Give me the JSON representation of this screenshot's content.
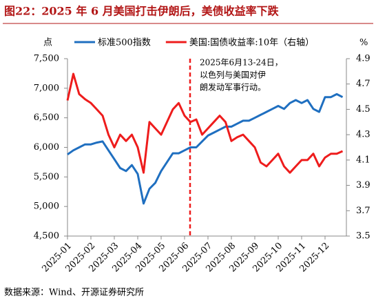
{
  "chart_data": {
    "type": "line",
    "title": "图22：2025 年 6 月美国打击伊朗后，美债收益率下跌",
    "y_label": "点",
    "y2_label": "%",
    "source": "数据来源：Wind、开源证券研究所",
    "annotation": [
      "2025年6月13-24日，",
      "以色列与美国对伊",
      "朗发动军事行动。"
    ],
    "categories": [
      "2025-01",
      null,
      null,
      null,
      "2025-02",
      null,
      null,
      null,
      "2025-03",
      null,
      null,
      null,
      "2025-04",
      null,
      null,
      null,
      "2025-05",
      null,
      null,
      null,
      "2025-06",
      null,
      null,
      null,
      "2025-07",
      null,
      null,
      null,
      "2025-08",
      null,
      null,
      null,
      "2025-09",
      null,
      null,
      null,
      "2025-10",
      null,
      null,
      null,
      "2025-11",
      null,
      null,
      null,
      "2025-12",
      null,
      null,
      null
    ],
    "series": [
      {
        "name": "标准500指数",
        "color": "#1f6fc0",
        "axis": "y",
        "values": [
          5880,
          5950,
          6000,
          6050,
          6050,
          6080,
          6100,
          5950,
          5800,
          5650,
          5600,
          5700,
          5550,
          5050,
          5300,
          5400,
          5600,
          5750,
          5900,
          5900,
          5950,
          6000,
          6000,
          6100,
          6200,
          6250,
          6300,
          6350,
          6350,
          6400,
          6450,
          6450,
          6500,
          6550,
          6600,
          6650,
          6700,
          6650,
          6750,
          6800,
          6750,
          6800,
          6650,
          6600,
          6850,
          6850,
          6900,
          6850
        ]
      },
      {
        "name": "美国:国债收益率:10年（右轴）",
        "color": "#ee1c1c",
        "axis": "y2",
        "values": [
          4.57,
          4.78,
          4.62,
          4.58,
          4.55,
          4.5,
          4.45,
          4.3,
          4.2,
          4.3,
          4.25,
          4.3,
          4.2,
          4.0,
          4.4,
          4.35,
          4.3,
          4.4,
          4.5,
          4.55,
          4.45,
          4.4,
          4.42,
          4.3,
          4.35,
          4.4,
          4.45,
          4.4,
          4.25,
          4.28,
          4.3,
          4.25,
          4.2,
          4.08,
          4.05,
          4.1,
          4.15,
          4.05,
          4.0,
          4.05,
          4.1,
          4.1,
          4.15,
          4.05,
          4.12,
          4.15,
          4.15,
          4.17
        ]
      }
    ],
    "ylim": [
      4500,
      7500
    ],
    "yticks": [
      {
        "value": 4500,
        "label": "4,500"
      },
      {
        "value": 5000,
        "label": "5,000"
      },
      {
        "value": 5500,
        "label": "5,500"
      },
      {
        "value": 6000,
        "label": "6,000"
      },
      {
        "value": 6500,
        "label": "6,500"
      },
      {
        "value": 7000,
        "label": "7,000"
      },
      {
        "value": 7500,
        "label": "7,500"
      }
    ],
    "y2lim": [
      3.5,
      4.9
    ],
    "y2ticks": [
      3.5,
      3.7,
      3.9,
      4.1,
      4.3,
      4.5,
      4.7,
      4.9
    ],
    "legend": "top"
  }
}
